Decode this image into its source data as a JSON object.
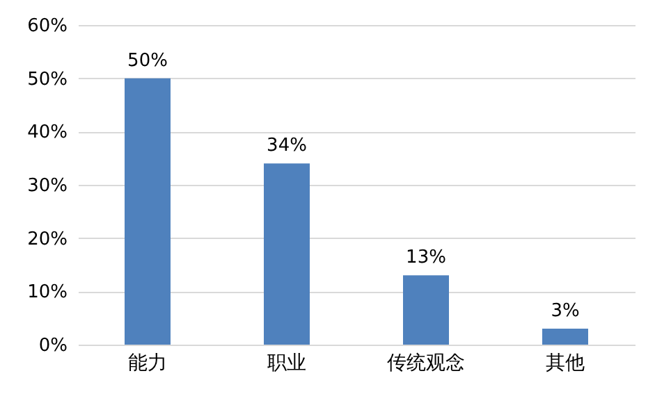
{
  "chart_data": {
    "type": "bar",
    "categories": [
      "能力",
      "职业",
      "传统观念",
      "其他"
    ],
    "values": [
      50,
      34,
      13,
      3
    ],
    "color": "#4f81bd",
    "value_labels": [
      "50%",
      "34%",
      "13%",
      "3%"
    ],
    "ylim": [
      0,
      60
    ],
    "yticks": [
      {
        "value": 0,
        "label": "0%"
      },
      {
        "value": 10,
        "label": "10%"
      },
      {
        "value": 20,
        "label": "20%"
      },
      {
        "value": 30,
        "label": "30%"
      },
      {
        "value": 40,
        "label": "40%"
      },
      {
        "value": 50,
        "label": "50%"
      },
      {
        "value": 60,
        "label": "60%"
      }
    ],
    "grid": "y"
  }
}
